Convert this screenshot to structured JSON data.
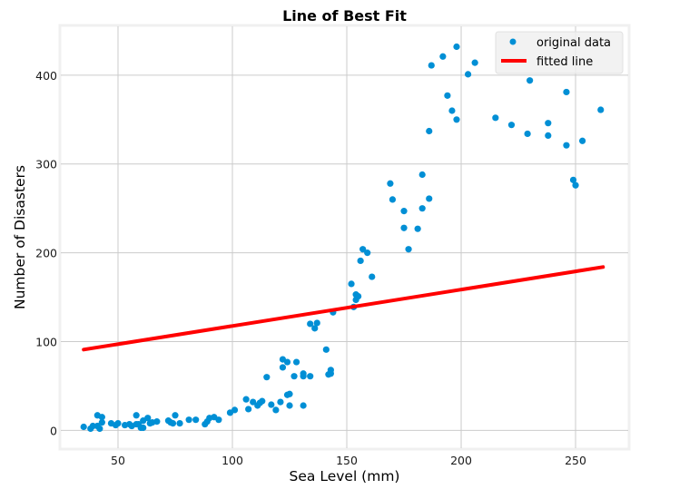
{
  "chart_data": {
    "type": "scatter",
    "title": "Line of Best Fit",
    "xlabel": "Sea Level (mm)",
    "ylabel": "Number of Disasters",
    "xlim": [
      25,
      273
    ],
    "ylim": [
      -20,
      455
    ],
    "xticks": [
      50,
      100,
      150,
      200,
      250
    ],
    "yticks": [
      0,
      100,
      200,
      300,
      400
    ],
    "grid": true,
    "legend_position": "top-right",
    "colors": {
      "points": "#008fd5",
      "line": "#ff0000",
      "grid": "#cbcbcb",
      "frame": "#f0f0f0",
      "legend_bg": "#f0f0f0"
    },
    "series": [
      {
        "name": "original data",
        "kind": "points",
        "x": [
          35,
          38,
          39,
          41,
          41,
          42,
          43,
          43,
          47,
          49,
          50,
          53,
          55,
          56,
          58,
          58,
          59,
          60,
          61,
          61,
          63,
          64,
          65,
          67,
          72,
          73,
          74,
          75,
          77,
          81,
          84,
          88,
          89,
          90,
          92,
          94,
          99,
          101,
          106,
          107,
          109,
          111,
          112,
          113,
          115,
          117,
          119,
          121,
          122,
          122,
          124,
          124,
          125,
          125,
          127,
          128,
          131,
          131,
          131,
          134,
          134,
          136,
          137,
          141,
          142,
          143,
          144,
          143,
          152,
          153,
          154,
          154,
          155,
          156,
          157,
          159,
          161,
          169,
          170,
          175,
          175,
          177,
          181,
          183,
          183,
          186,
          186,
          187,
          192,
          194,
          196,
          198,
          198,
          203,
          206,
          215,
          222,
          229,
          230,
          238,
          238,
          246,
          246,
          249,
          250,
          253,
          261
        ],
        "y": [
          4,
          2,
          5,
          17,
          5,
          2,
          9,
          15,
          8,
          6,
          8,
          6,
          7,
          5,
          17,
          7,
          7,
          3,
          11,
          3,
          14,
          8,
          9,
          10,
          11,
          9,
          8,
          17,
          8,
          12,
          12,
          7,
          10,
          14,
          15,
          12,
          20,
          23,
          35,
          24,
          32,
          28,
          31,
          33,
          60,
          29,
          23,
          32,
          71,
          80,
          77,
          40,
          41,
          28,
          61,
          77,
          61,
          28,
          64,
          61,
          120,
          115,
          121,
          91,
          63,
          68,
          133,
          64,
          165,
          139,
          147,
          153,
          151,
          191,
          204,
          200,
          173,
          278,
          260,
          247,
          228,
          204,
          227,
          250,
          288,
          261,
          337,
          411,
          421,
          377,
          360,
          432,
          350,
          401,
          414,
          352,
          344,
          334,
          394,
          346,
          332,
          381,
          321,
          282,
          276,
          326,
          361
        ]
      },
      {
        "name": "fitted line",
        "kind": "line",
        "x": [
          35,
          262
        ],
        "y": [
          91,
          184
        ]
      }
    ]
  }
}
